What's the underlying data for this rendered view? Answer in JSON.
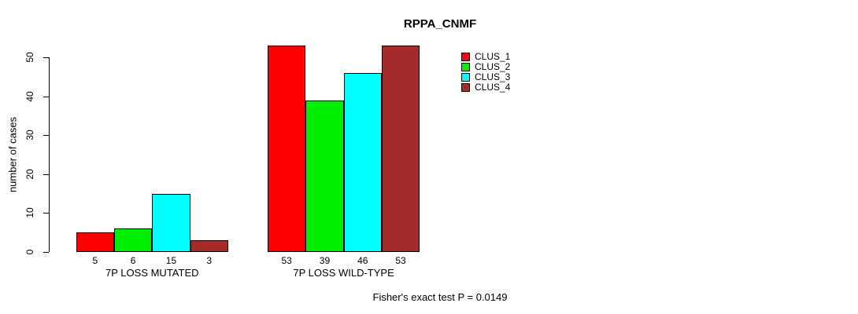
{
  "chart_data": {
    "type": "bar",
    "title": "RPPA_CNMF",
    "ylabel": "number of cases",
    "xlabel": "",
    "categories": [
      "7P LOSS MUTATED",
      "7P LOSS WILD-TYPE"
    ],
    "series": [
      {
        "name": "CLUS_1",
        "color": "#ff0000",
        "values": [
          5,
          53
        ]
      },
      {
        "name": "CLUS_2",
        "color": "#00ee00",
        "values": [
          6,
          39
        ]
      },
      {
        "name": "CLUS_3",
        "color": "#00ffff",
        "values": [
          15,
          46
        ]
      },
      {
        "name": "CLUS_4",
        "color": "#a52a2a",
        "values": [
          3,
          53
        ]
      }
    ],
    "bar_value_labels": [
      [
        "5",
        "6",
        "15",
        "3"
      ],
      [
        "53",
        "39",
        "46",
        "53"
      ]
    ],
    "ylim": [
      0,
      50
    ],
    "yticks": [
      0,
      10,
      20,
      30,
      40,
      50
    ],
    "grid": false,
    "legend_position": "top-right",
    "legend_entries": [
      "CLUS_1",
      "CLUS_2",
      "CLUS_3",
      "CLUS_4"
    ],
    "annotation": "Fisher's exact test P = 0.0149"
  }
}
